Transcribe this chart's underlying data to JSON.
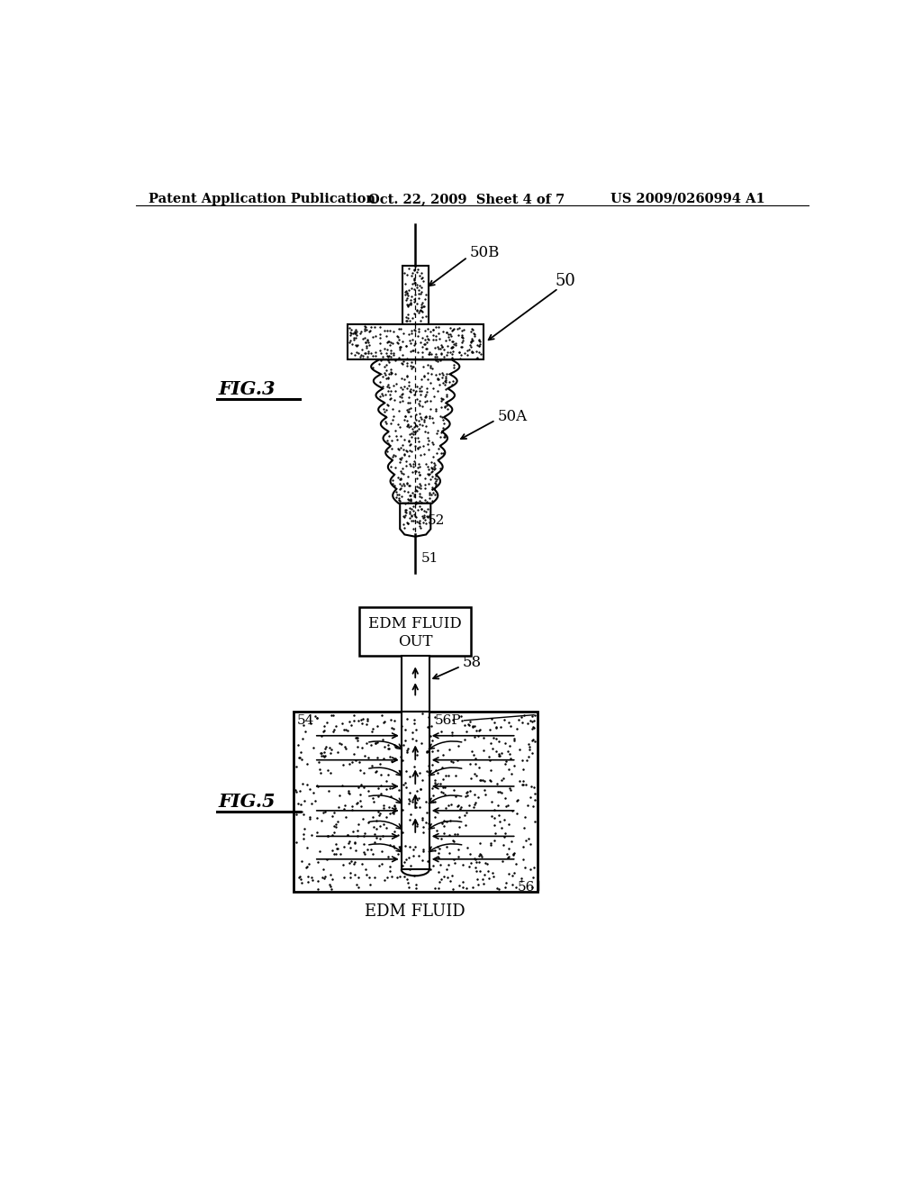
{
  "bg_color": "#ffffff",
  "header_left": "Patent Application Publication",
  "header_mid": "Oct. 22, 2009  Sheet 4 of 7",
  "header_right": "US 2009/0260994 A1",
  "fig3_label": "FIG.3",
  "fig5_label": "FIG.5",
  "label_50B": "50B",
  "label_50": "50",
  "label_50A": "50A",
  "label_52": "52",
  "label_51": "51",
  "label_54": "54",
  "label_56P": "56P",
  "label_58": "58",
  "label_56": "56",
  "edm_fluid_out": "EDM FLUID\nOUT",
  "edm_fluid": "EDM FLUID"
}
